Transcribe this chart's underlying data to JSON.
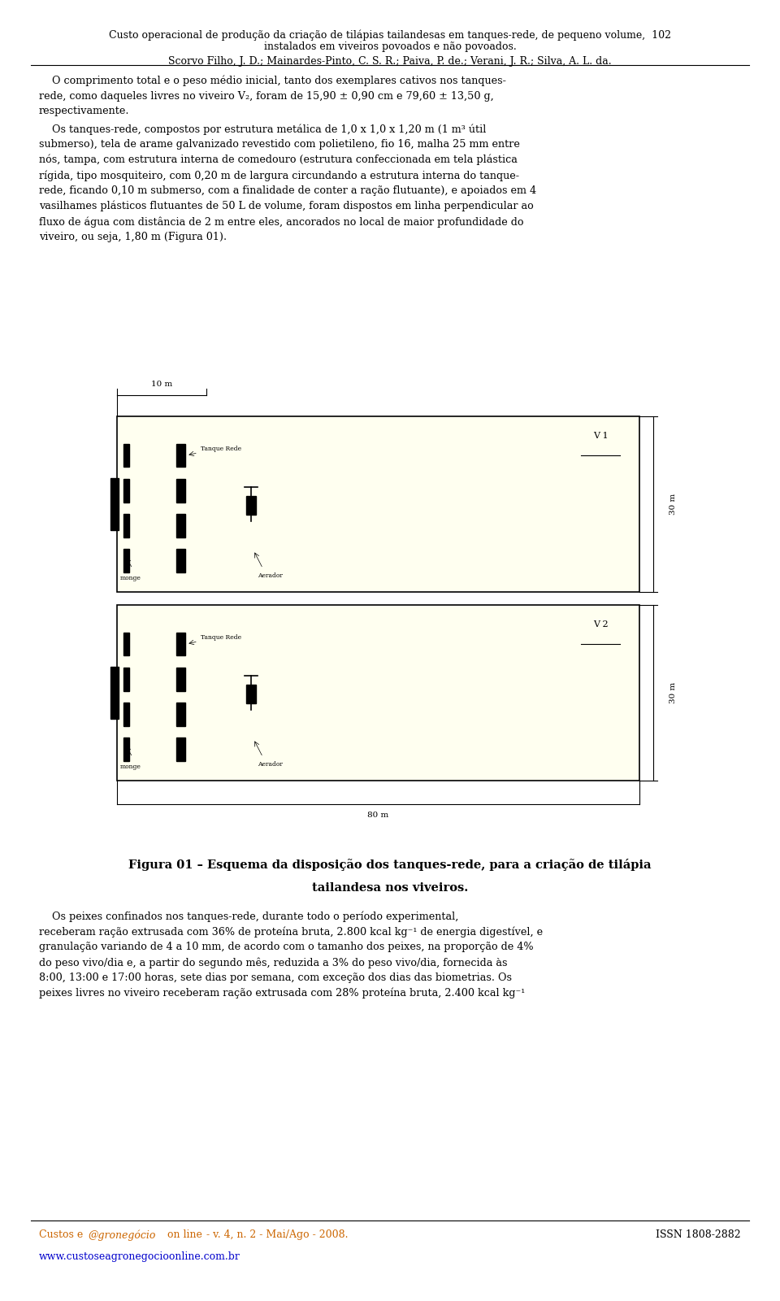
{
  "title_line1": "Custo operacional de produção da criação de tilápias tailandesas em tanques-rede, de pequeno volume,  102",
  "title_line2": "instalados em viveiros povoados e não povoados.",
  "authors": "Scorvo Filho, J. D.; Mainardes-Pinto, C. S. R.; Paiva, P. de.; Verani, J. R.; Silva, A. L. da.",
  "fig_caption_line1": "Figura 01 – Esquema da disposição dos tanques-rede, para a criação de tilápia",
  "fig_caption_line2": "tailandesa nos viveiros.",
  "footer_right": "ISSN 1808-2882",
  "footer_url": "www.custoseagronegocioonline.com.br",
  "bg_color": "#ffffff",
  "pond_fill": "#fffff0",
  "pond_border": "#000000"
}
